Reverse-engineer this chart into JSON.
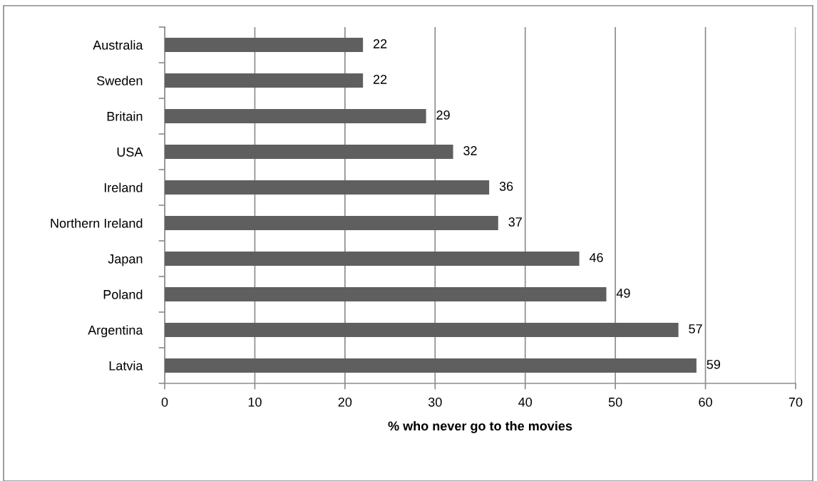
{
  "chart_data": {
    "type": "bar",
    "orientation": "horizontal",
    "categories": [
      "Australia",
      "Sweden",
      "Britain",
      "USA",
      "Ireland",
      "Northern Ireland",
      "Japan",
      "Poland",
      "Argentina",
      "Latvia"
    ],
    "values": [
      22,
      22,
      29,
      32,
      36,
      37,
      46,
      49,
      57,
      59
    ],
    "color": "#5f5f5f",
    "xlabel": "% who never go to the movies",
    "xlim": [
      0,
      70
    ],
    "xticks": [
      0,
      10,
      20,
      30,
      40,
      50,
      60,
      70
    ],
    "grid": "x",
    "data_labels": true,
    "legend": false
  }
}
